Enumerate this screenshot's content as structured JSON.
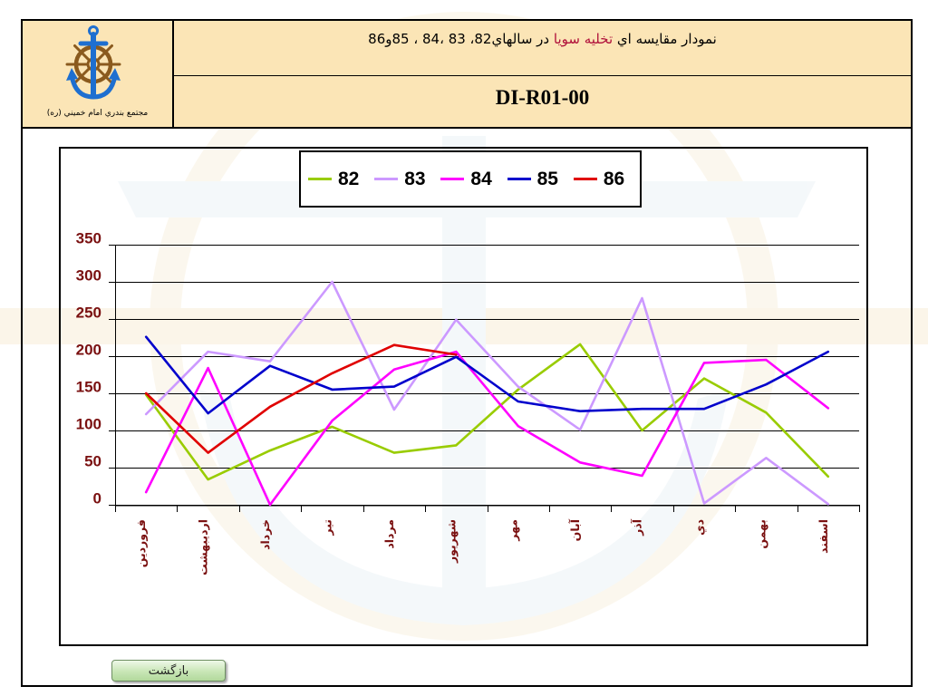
{
  "header": {
    "org_name": "مجتمع بندري امام خميني (ره)",
    "title_part1": "نمودار مقايسه اي",
    "title_highlight": "تخليه سويا",
    "title_part2": "در سالهاي82، 83 ،84 ، 85و86",
    "doc_code": "DI-R01-00",
    "logo_icon": "anchor-wheel-icon"
  },
  "colors": {
    "header_bg": "#FBE5B6",
    "title_highlight": "#B0103A",
    "axis_label": "#7A1010",
    "button_bg": "#C8E6B6"
  },
  "chart_data": {
    "type": "line",
    "categories": [
      "فروردين",
      "ارديبهشت",
      "خرداد",
      "تير",
      "مرداد",
      "شهريور",
      "مهر",
      "آبان",
      "آذر",
      "دي",
      "بهمن",
      "اسفند"
    ],
    "series": [
      {
        "name": "82",
        "color": "#99CC00",
        "values": [
          148,
          34,
          73,
          105,
          70,
          80,
          155,
          216,
          100,
          170,
          124,
          38
        ]
      },
      {
        "name": "83",
        "color": "#CC99FF",
        "values": [
          122,
          206,
          193,
          300,
          128,
          249,
          159,
          101,
          278,
          2,
          63,
          1
        ]
      },
      {
        "name": "84",
        "color": "#FF00FF",
        "values": [
          17,
          184,
          0,
          113,
          182,
          206,
          106,
          57,
          39,
          191,
          195,
          130
        ]
      },
      {
        "name": "85",
        "color": "#0000CC",
        "values": [
          226,
          123,
          187,
          155,
          159,
          199,
          139,
          126,
          129,
          129,
          162,
          206
        ]
      },
      {
        "name": "86",
        "color": "#E00000",
        "values": [
          150,
          70,
          132,
          177,
          215,
          202,
          null,
          null,
          null,
          null,
          null,
          null
        ]
      }
    ],
    "ylim": [
      0,
      350
    ],
    "yticks": [
      0,
      50,
      100,
      150,
      200,
      250,
      300,
      350
    ],
    "grid": true,
    "legend_position": "top"
  },
  "nav": {
    "back_label": "بازگشت"
  }
}
